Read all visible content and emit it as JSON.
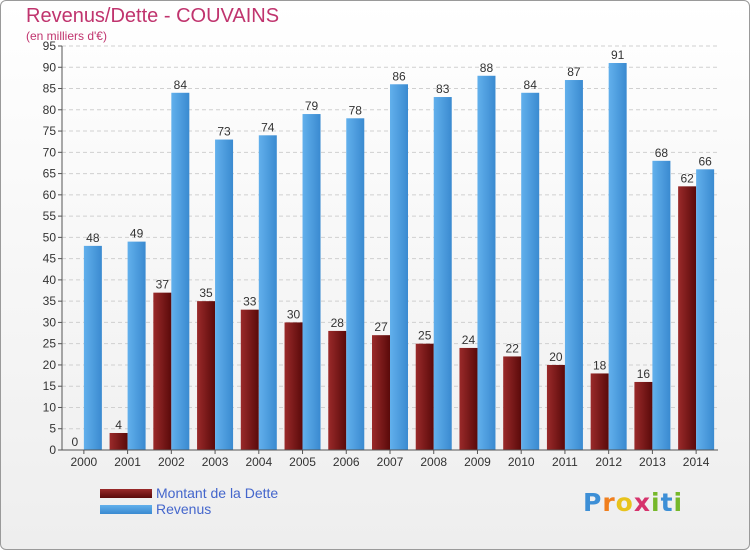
{
  "title": "Revenus/Dette - COUVAINS",
  "subtitle": "(en milliers d'€)",
  "chart_data": {
    "type": "bar",
    "categories": [
      "2000",
      "2001",
      "2002",
      "2003",
      "2004",
      "2005",
      "2006",
      "2007",
      "2008",
      "2009",
      "2010",
      "2011",
      "2012",
      "2013",
      "2014"
    ],
    "series": [
      {
        "name": "Montant de la Dette",
        "color": "#7a1515",
        "values": [
          0,
          4,
          37,
          35,
          33,
          30,
          28,
          27,
          25,
          24,
          22,
          20,
          18,
          16,
          62
        ]
      },
      {
        "name": "Revenus",
        "color": "#4d9fe0",
        "values": [
          48,
          49,
          84,
          73,
          74,
          79,
          78,
          86,
          83,
          88,
          84,
          87,
          91,
          68,
          66
        ]
      }
    ],
    "yticks": [
      0,
      5,
      10,
      15,
      20,
      25,
      30,
      35,
      40,
      45,
      50,
      55,
      60,
      65,
      70,
      75,
      80,
      85,
      90,
      95
    ],
    "ylim": [
      0,
      95
    ],
    "grid": true,
    "legend_position": "bottom-left"
  },
  "legend": {
    "items": [
      {
        "label": "Montant de la Dette",
        "color": "#7a1515"
      },
      {
        "label": "Revenus",
        "color": "#4d9fe0"
      }
    ]
  },
  "logo": {
    "letters": [
      "P",
      "r",
      "o",
      "x",
      "i",
      "t",
      "i"
    ],
    "colors": [
      "#3d8fd6",
      "#f07f1e",
      "#e8c31c",
      "#d6336c",
      "#76b82a",
      "#3d8fd6",
      "#76b82a"
    ]
  }
}
